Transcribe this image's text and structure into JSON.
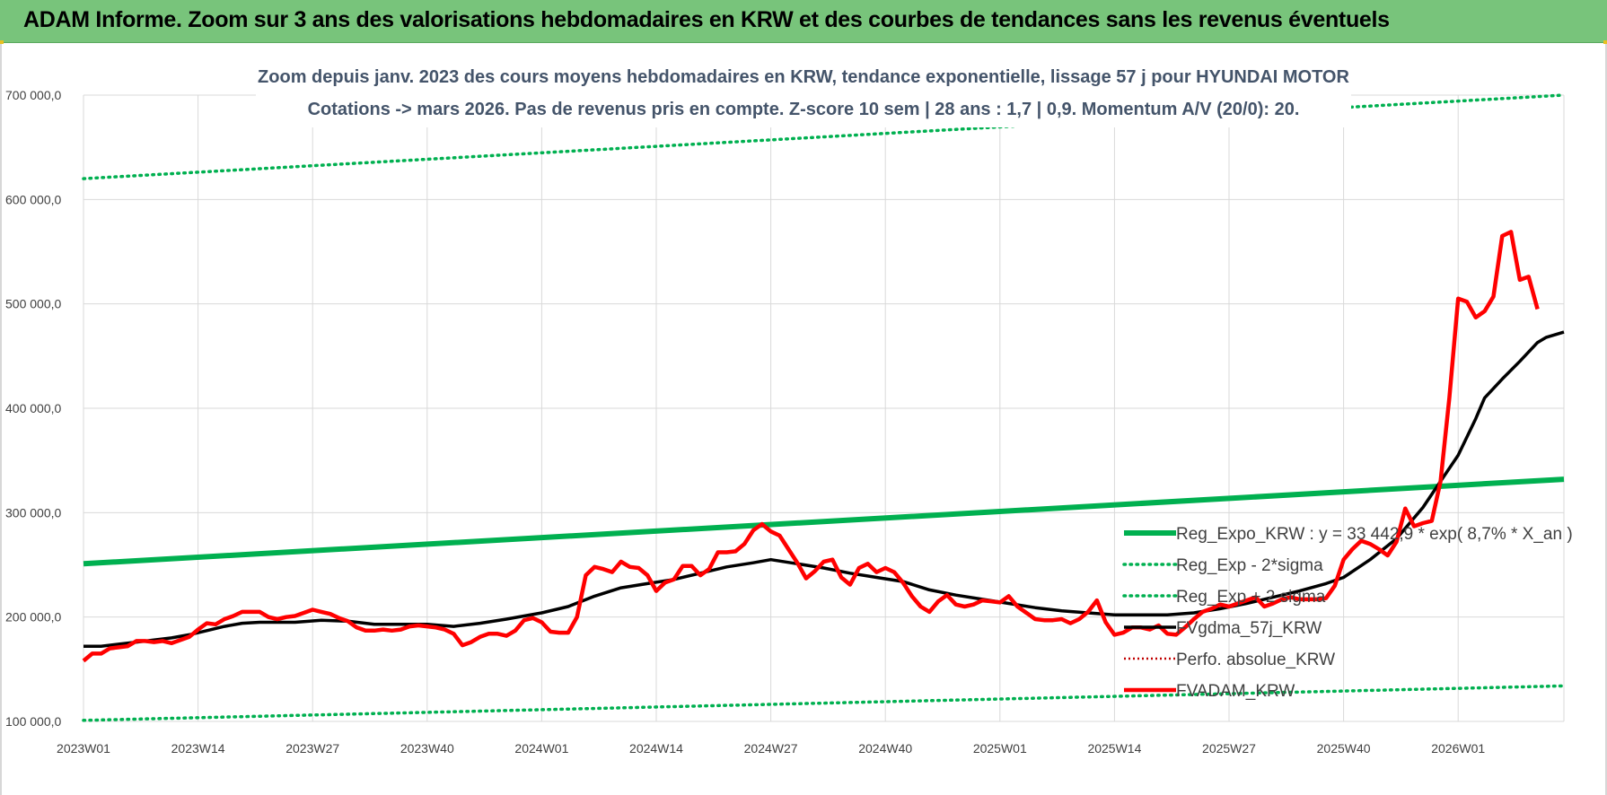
{
  "banner": {
    "title": "ADAM Informe. Zoom sur 3 ans des valorisations hebdomadaires en KRW et des courbes de tendances sans les revenus éventuels"
  },
  "colors": {
    "banner": "#78c47b",
    "trend": "#00b050",
    "moving_average": "#000000",
    "valuation": "#ff0000",
    "perf_absolue": "#c00000",
    "grid": "#d9d9d9"
  },
  "chart_data": {
    "type": "line",
    "title_lines": [
      "Zoom depuis janv. 2023 des cours moyens hebdomadaires en KRW, tendance exponentielle, lissage 57 j pour HYUNDAI MOTOR",
      "Cotations -> mars 2026. Pas de revenus pris en compte. Z-score 10 sem | 28 ans : 1,7 | 0,9. Momentum A/V (20/0): 20."
    ],
    "x_tick_labels": [
      "2023W01",
      "2023W14",
      "2023W27",
      "2023W40",
      "2024W01",
      "2024W14",
      "2024W27",
      "2024W40",
      "2025W01",
      "2025W14",
      "2025W27",
      "2025W40",
      "2026W01"
    ],
    "x_tick_weeks": [
      0,
      13,
      26,
      39,
      52,
      65,
      78,
      91,
      104,
      117,
      130,
      143,
      156
    ],
    "x_last_week": 168,
    "y_ticks": [
      100000,
      200000,
      300000,
      400000,
      500000,
      600000,
      700000
    ],
    "y_tick_labels": [
      "100 000,0",
      "200 000,0",
      "300 000,0",
      "400 000,0",
      "500 000,0",
      "600 000,0",
      "700 000,0"
    ],
    "ylim": [
      100000,
      700000
    ],
    "grid": true,
    "legend_position": "right",
    "legend": [
      {
        "label": "Reg_Expo_KRW : y = 33 442,9 * exp( 8,7% *  X_an )",
        "key": "reg_expo"
      },
      {
        "label": "Reg_Exp - 2*sigma",
        "key": "reg_minus"
      },
      {
        "label": "Reg_Exp + 2 sigma",
        "key": "reg_plus"
      },
      {
        "label": "FVgdma_57j_KRW",
        "key": "fvgdma"
      },
      {
        "label": "Perfo. absolue_KRW",
        "key": "perfo"
      },
      {
        "label": "FVADAM_KRW",
        "key": "fvadam"
      }
    ],
    "series": [
      {
        "key": "reg_expo",
        "points": [
          [
            0,
            251000
          ],
          [
            168,
            332000
          ]
        ]
      },
      {
        "key": "reg_minus",
        "points": [
          [
            0,
            101000
          ],
          [
            168,
            134000
          ]
        ]
      },
      {
        "key": "reg_plus",
        "points": [
          [
            0,
            620000
          ],
          [
            168,
            700000
          ]
        ]
      },
      {
        "key": "fvgdma",
        "points": [
          [
            0,
            172000
          ],
          [
            2,
            172000
          ],
          [
            4,
            174000
          ],
          [
            6,
            176000
          ],
          [
            8,
            178000
          ],
          [
            10,
            180000
          ],
          [
            12,
            183000
          ],
          [
            14,
            187000
          ],
          [
            16,
            191000
          ],
          [
            18,
            194000
          ],
          [
            20,
            195000
          ],
          [
            24,
            195000
          ],
          [
            27,
            197000
          ],
          [
            30,
            196000
          ],
          [
            33,
            193000
          ],
          [
            36,
            193000
          ],
          [
            39,
            193000
          ],
          [
            42,
            191000
          ],
          [
            45,
            194000
          ],
          [
            48,
            198000
          ],
          [
            52,
            204000
          ],
          [
            55,
            210000
          ],
          [
            58,
            220000
          ],
          [
            61,
            228000
          ],
          [
            64,
            232000
          ],
          [
            67,
            236000
          ],
          [
            70,
            242000
          ],
          [
            73,
            248000
          ],
          [
            76,
            252000
          ],
          [
            78,
            255000
          ],
          [
            81,
            251000
          ],
          [
            84,
            247000
          ],
          [
            87,
            242000
          ],
          [
            90,
            238000
          ],
          [
            93,
            234000
          ],
          [
            96,
            226000
          ],
          [
            99,
            221000
          ],
          [
            102,
            217000
          ],
          [
            105,
            213000
          ],
          [
            108,
            209000
          ],
          [
            111,
            206000
          ],
          [
            114,
            204000
          ],
          [
            117,
            202000
          ],
          [
            120,
            202000
          ],
          [
            123,
            202000
          ],
          [
            126,
            204000
          ],
          [
            129,
            208000
          ],
          [
            132,
            213000
          ],
          [
            135,
            219000
          ],
          [
            138,
            225000
          ],
          [
            141,
            232000
          ],
          [
            143,
            238000
          ],
          [
            146,
            255000
          ],
          [
            149,
            275000
          ],
          [
            152,
            305000
          ],
          [
            154,
            330000
          ],
          [
            156,
            355000
          ],
          [
            158,
            390000
          ],
          [
            159,
            410000
          ],
          [
            161,
            428000
          ],
          [
            163,
            445000
          ],
          [
            165,
            463000
          ],
          [
            166,
            468000
          ],
          [
            168,
            473000
          ]
        ]
      },
      {
        "key": "fvadam",
        "points": [
          [
            0,
            158000
          ],
          [
            1,
            165000
          ],
          [
            2,
            165000
          ],
          [
            3,
            170000
          ],
          [
            4,
            171000
          ],
          [
            5,
            172000
          ],
          [
            6,
            177000
          ],
          [
            7,
            177000
          ],
          [
            8,
            176000
          ],
          [
            9,
            177000
          ],
          [
            10,
            175000
          ],
          [
            11,
            178000
          ],
          [
            12,
            181000
          ],
          [
            13,
            188000
          ],
          [
            14,
            194000
          ],
          [
            15,
            193000
          ],
          [
            16,
            198000
          ],
          [
            17,
            201000
          ],
          [
            18,
            205000
          ],
          [
            19,
            205000
          ],
          [
            20,
            205000
          ],
          [
            21,
            200000
          ],
          [
            22,
            198000
          ],
          [
            23,
            200000
          ],
          [
            24,
            201000
          ],
          [
            25,
            204000
          ],
          [
            26,
            207000
          ],
          [
            27,
            205000
          ],
          [
            28,
            203000
          ],
          [
            29,
            199000
          ],
          [
            30,
            196000
          ],
          [
            31,
            190000
          ],
          [
            32,
            187000
          ],
          [
            33,
            187000
          ],
          [
            34,
            188000
          ],
          [
            35,
            187000
          ],
          [
            36,
            188000
          ],
          [
            37,
            191000
          ],
          [
            38,
            192000
          ],
          [
            39,
            191000
          ],
          [
            40,
            190000
          ],
          [
            41,
            188000
          ],
          [
            42,
            184000
          ],
          [
            43,
            173000
          ],
          [
            44,
            176000
          ],
          [
            45,
            181000
          ],
          [
            46,
            184000
          ],
          [
            47,
            184000
          ],
          [
            48,
            182000
          ],
          [
            49,
            187000
          ],
          [
            50,
            197000
          ],
          [
            51,
            199000
          ],
          [
            52,
            195000
          ],
          [
            53,
            186000
          ],
          [
            54,
            185000
          ],
          [
            55,
            185000
          ],
          [
            56,
            200000
          ],
          [
            57,
            240000
          ],
          [
            58,
            248000
          ],
          [
            59,
            246000
          ],
          [
            60,
            243000
          ],
          [
            61,
            253000
          ],
          [
            62,
            248000
          ],
          [
            63,
            247000
          ],
          [
            64,
            240000
          ],
          [
            65,
            225000
          ],
          [
            66,
            233000
          ],
          [
            67,
            236000
          ],
          [
            68,
            249000
          ],
          [
            69,
            249000
          ],
          [
            70,
            240000
          ],
          [
            71,
            246000
          ],
          [
            72,
            262000
          ],
          [
            73,
            262000
          ],
          [
            74,
            263000
          ],
          [
            75,
            270000
          ],
          [
            76,
            283000
          ],
          [
            77,
            289000
          ],
          [
            78,
            282000
          ],
          [
            79,
            278000
          ],
          [
            80,
            265000
          ],
          [
            81,
            252000
          ],
          [
            82,
            237000
          ],
          [
            83,
            244000
          ],
          [
            84,
            253000
          ],
          [
            85,
            255000
          ],
          [
            86,
            238000
          ],
          [
            87,
            231000
          ],
          [
            88,
            247000
          ],
          [
            89,
            251000
          ],
          [
            90,
            243000
          ],
          [
            91,
            247000
          ],
          [
            92,
            243000
          ],
          [
            93,
            233000
          ],
          [
            94,
            220000
          ],
          [
            95,
            210000
          ],
          [
            96,
            205000
          ],
          [
            97,
            215000
          ],
          [
            98,
            221000
          ],
          [
            99,
            212000
          ],
          [
            100,
            210000
          ],
          [
            101,
            212000
          ],
          [
            102,
            216000
          ],
          [
            103,
            215000
          ],
          [
            104,
            214000
          ],
          [
            105,
            220000
          ],
          [
            106,
            210000
          ],
          [
            107,
            204000
          ],
          [
            108,
            198000
          ],
          [
            109,
            197000
          ],
          [
            110,
            197000
          ],
          [
            111,
            198000
          ],
          [
            112,
            194000
          ],
          [
            113,
            198000
          ],
          [
            114,
            205000
          ],
          [
            115,
            216000
          ],
          [
            116,
            195000
          ],
          [
            117,
            183000
          ],
          [
            118,
            185000
          ],
          [
            119,
            190000
          ],
          [
            120,
            190000
          ],
          [
            121,
            188000
          ],
          [
            122,
            192000
          ],
          [
            123,
            184000
          ],
          [
            124,
            183000
          ],
          [
            125,
            190000
          ],
          [
            126,
            198000
          ],
          [
            127,
            205000
          ],
          [
            128,
            208000
          ],
          [
            129,
            212000
          ],
          [
            130,
            210000
          ],
          [
            131,
            213000
          ],
          [
            132,
            216000
          ],
          [
            133,
            219000
          ],
          [
            134,
            210000
          ],
          [
            135,
            213000
          ],
          [
            136,
            217000
          ],
          [
            137,
            219000
          ],
          [
            138,
            217000
          ],
          [
            139,
            217000
          ],
          [
            140,
            217000
          ],
          [
            141,
            218000
          ],
          [
            142,
            230000
          ],
          [
            143,
            255000
          ],
          [
            144,
            265000
          ],
          [
            145,
            273000
          ],
          [
            146,
            270000
          ],
          [
            147,
            265000
          ],
          [
            148,
            259000
          ],
          [
            149,
            272000
          ],
          [
            150,
            304000
          ],
          [
            151,
            287000
          ],
          [
            152,
            290000
          ],
          [
            153,
            292000
          ],
          [
            154,
            330000
          ],
          [
            155,
            410000
          ],
          [
            156,
            505000
          ],
          [
            157,
            502000
          ],
          [
            158,
            487000
          ],
          [
            159,
            493000
          ],
          [
            160,
            507000
          ],
          [
            161,
            565000
          ],
          [
            162,
            569000
          ],
          [
            163,
            523000
          ],
          [
            164,
            526000
          ],
          [
            165,
            495000
          ]
        ]
      }
    ]
  }
}
